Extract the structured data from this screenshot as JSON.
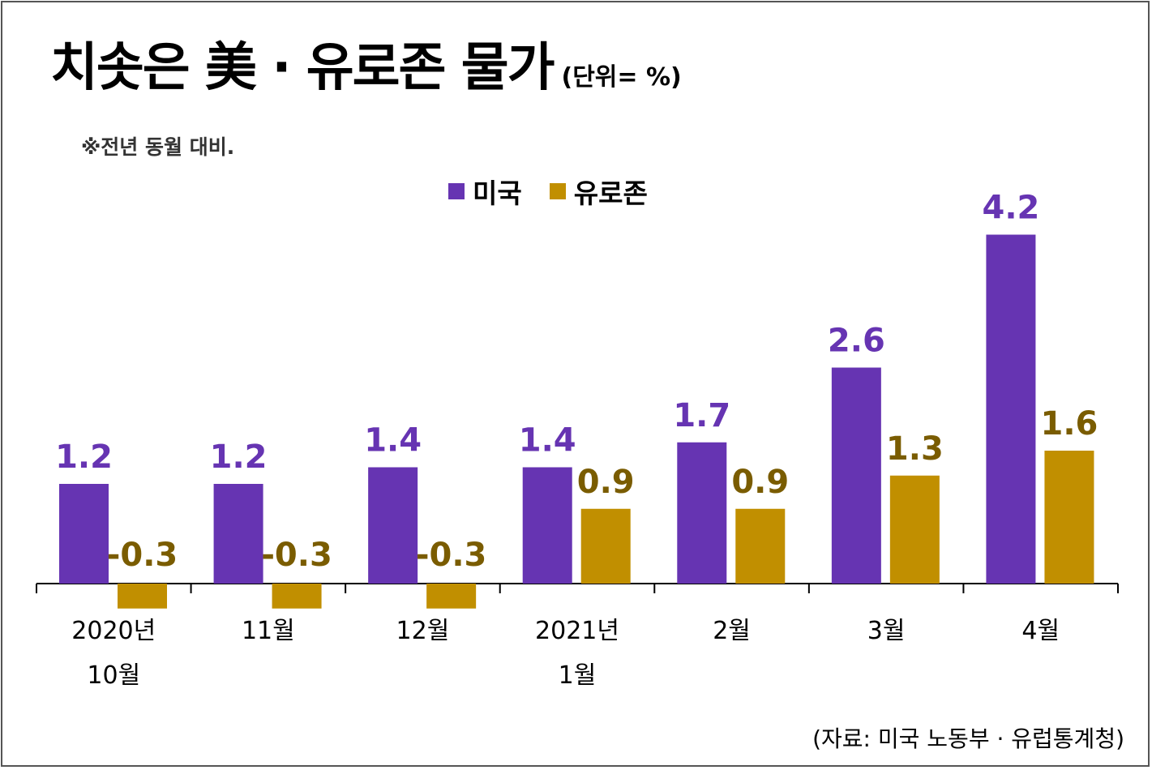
{
  "title": "치솟은 美 · 유로존 물가",
  "unit": "(단위= %)",
  "note": "※전년 동월 대비.",
  "source": "(자료: 미국 노동부 · 유럽통계청)",
  "colors": {
    "us": "#6634b2",
    "ez": "#c18f00",
    "ez_label": "#7a5c00"
  },
  "chart_data": {
    "type": "bar",
    "categories": [
      [
        "2020년",
        "10월"
      ],
      [
        "11월"
      ],
      [
        "12월"
      ],
      [
        "2021년",
        "1월"
      ],
      [
        "2월"
      ],
      [
        "3월"
      ],
      [
        "4월"
      ]
    ],
    "series": [
      {
        "name": "미국",
        "values": [
          1.2,
          1.2,
          1.4,
          1.4,
          1.7,
          2.6,
          4.2
        ],
        "labels": [
          "1.2",
          "1.2",
          "1.4",
          "1.4",
          "1.7",
          "2.6",
          "4.2"
        ]
      },
      {
        "name": "유로존",
        "values": [
          -0.3,
          -0.3,
          -0.3,
          0.9,
          0.9,
          1.3,
          1.6
        ],
        "labels": [
          "-0.3",
          "-0.3",
          "-0.3",
          "0.9",
          "0.9",
          "1.3",
          "1.6"
        ]
      }
    ],
    "legend_position": "top-center",
    "grid": false
  }
}
